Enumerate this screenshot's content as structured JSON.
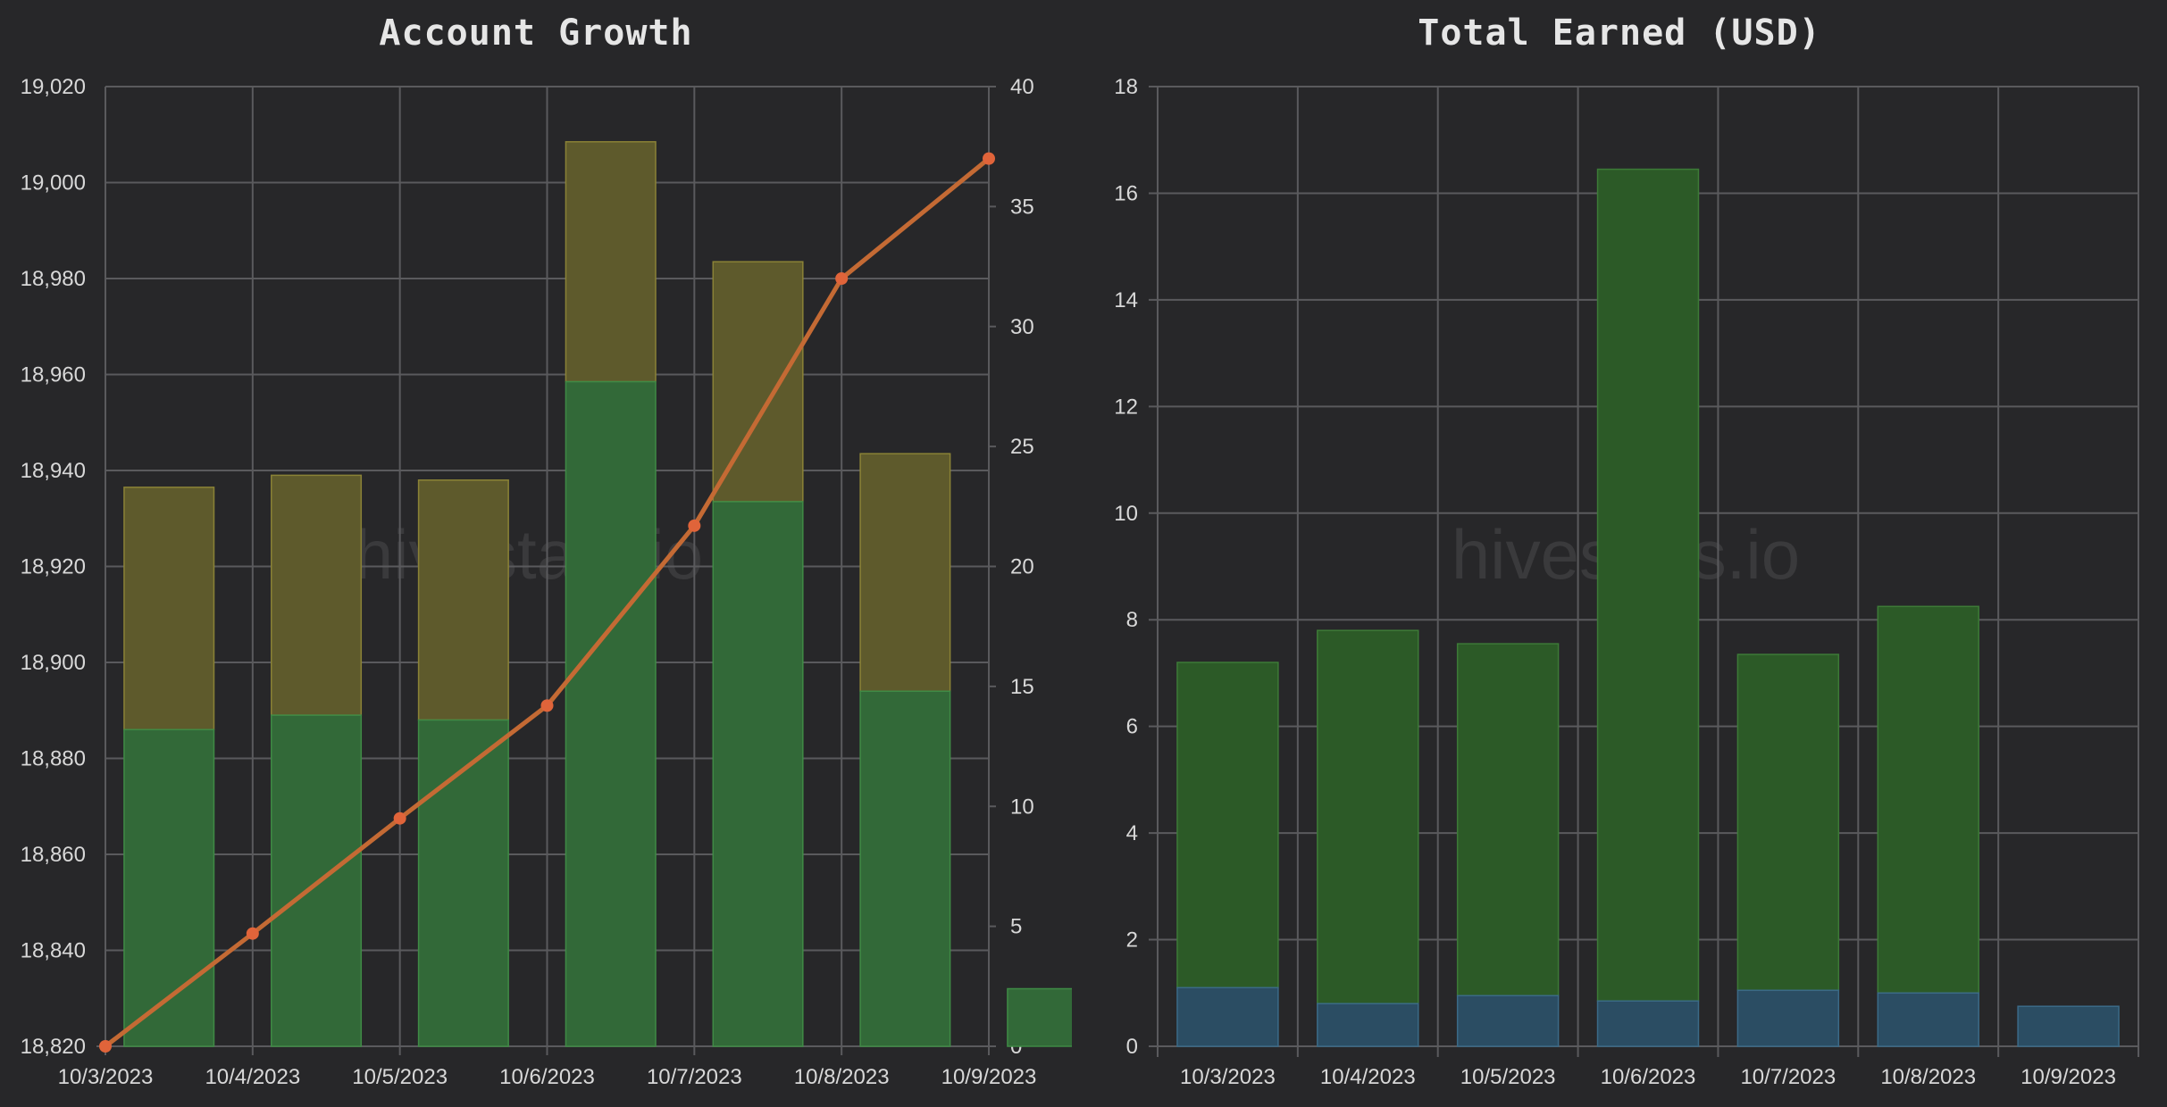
{
  "watermark": "hivestats.io",
  "colors": {
    "background": "#272729",
    "grid": "#5a5a5d",
    "bar_yellow": "#5e5a2c",
    "bar_yellow_edge": "#8a8236",
    "bar_green": "#326938",
    "bar_green_edge": "#3f8a45",
    "line": "#c46a34",
    "point": "#e0643a",
    "earned_green": "#2c5a27",
    "earned_green_edge": "#3d7a37",
    "earned_blue": "#2b4d63",
    "earned_blue_edge": "#3b6a87"
  },
  "chart_data": [
    {
      "type": "bar",
      "title": "Account Growth",
      "categories": [
        "10/3/2023",
        "10/4/2023",
        "10/5/2023",
        "10/6/2023",
        "10/7/2023",
        "10/8/2023",
        "10/9/2023"
      ],
      "y_left": {
        "ylim": [
          18820,
          19020
        ],
        "ticks": [
          18820,
          18840,
          18860,
          18880,
          18900,
          18920,
          18940,
          18960,
          18980,
          19000,
          19020
        ]
      },
      "y_right": {
        "ylim": [
          0,
          40
        ],
        "ticks": [
          0,
          5,
          10,
          15,
          20,
          25,
          30,
          35,
          40
        ]
      },
      "series": [
        {
          "kind": "bar",
          "axis": "left",
          "color": "green",
          "values": [
            18886,
            18889,
            18888,
            18958.5,
            18933.5,
            18894,
            18832
          ]
        },
        {
          "kind": "bar",
          "axis": "left",
          "color": "yellow",
          "values": [
            18936.5,
            18939,
            18938,
            19008.5,
            18983.5,
            18943.5,
            null
          ]
        },
        {
          "kind": "line",
          "axis": "right",
          "values": [
            0,
            4.7,
            9.5,
            14.2,
            21.7,
            32,
            37
          ]
        }
      ],
      "grid": true
    },
    {
      "type": "bar",
      "title": "Total Earned (USD)",
      "categories": [
        "10/3/2023",
        "10/4/2023",
        "10/5/2023",
        "10/6/2023",
        "10/7/2023",
        "10/8/2023",
        "10/9/2023"
      ],
      "ylim": [
        0,
        18
      ],
      "yticks": [
        0,
        2,
        4,
        6,
        8,
        10,
        12,
        14,
        16,
        18
      ],
      "stacked": true,
      "series": [
        {
          "color": "blue",
          "values": [
            1.1,
            0.8,
            0.95,
            0.85,
            1.05,
            1.0,
            0.75
          ]
        },
        {
          "color": "green",
          "values": [
            6.1,
            7.0,
            6.6,
            15.6,
            6.3,
            7.25,
            0
          ]
        }
      ],
      "grid": true
    }
  ]
}
